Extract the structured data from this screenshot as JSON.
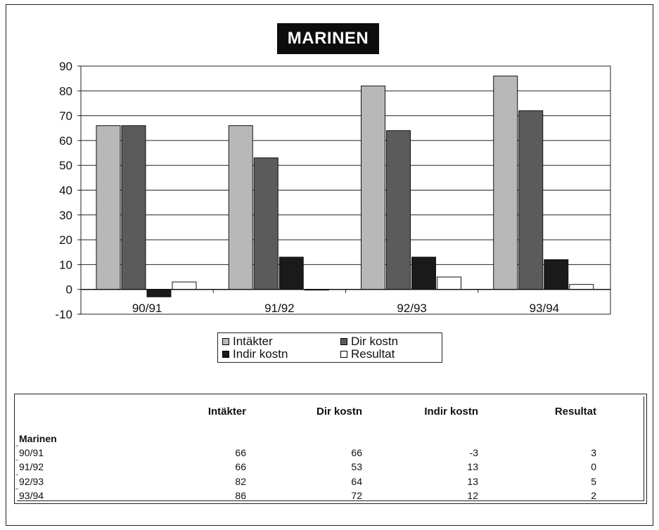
{
  "chart_data": {
    "type": "bar",
    "title": "MARINEN",
    "categories": [
      "90/91",
      "91/92",
      "92/93",
      "93/94"
    ],
    "series": [
      {
        "name": "Intäkter",
        "values": [
          66,
          66,
          82,
          86
        ],
        "color": "#b8b8b8"
      },
      {
        "name": "Dir kostn",
        "values": [
          66,
          53,
          64,
          72
        ],
        "color": "#5b5b5b"
      },
      {
        "name": "Indir kostn",
        "values": [
          -3,
          13,
          13,
          12
        ],
        "color": "#1a1a1a"
      },
      {
        "name": "Resultat",
        "values": [
          3,
          0,
          5,
          2
        ],
        "color": "#ffffff"
      }
    ],
    "ylim": [
      -10,
      90
    ],
    "yticks": [
      "90",
      "80",
      "70",
      "60",
      "50",
      "40",
      "30",
      "20",
      "10",
      "0",
      "-10"
    ],
    "grid": true,
    "legend_position": "bottom"
  },
  "legend": {
    "items": [
      "Intäkter",
      "Dir kostn",
      "Indir kostn",
      "Resultat"
    ]
  },
  "table": {
    "headers": [
      "Intäkter",
      "Dir kostn",
      "Indir kostn",
      "Resultat"
    ],
    "section_label": "Marinen",
    "rows": [
      {
        "label": "90/91",
        "values": [
          "66",
          "66",
          "-3",
          "3"
        ]
      },
      {
        "label": "91/92",
        "values": [
          "66",
          "53",
          "13",
          "0"
        ]
      },
      {
        "label": "92/93",
        "values": [
          "82",
          "64",
          "13",
          "5"
        ]
      },
      {
        "label": "93/94",
        "values": [
          "86",
          "72",
          "12",
          "2"
        ]
      }
    ]
  }
}
